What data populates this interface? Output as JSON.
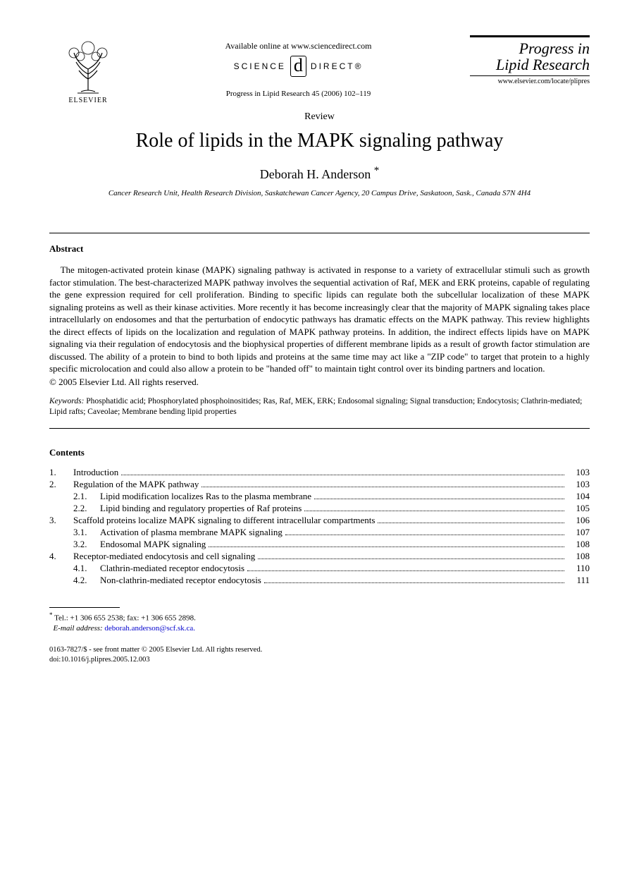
{
  "header": {
    "availableLine": "Available online at www.sciencedirect.com",
    "sdScience": "SCIENCE",
    "sdDirect": "DIRECT®",
    "citation": "Progress in Lipid Research 45 (2006) 102–119",
    "publisher": "ELSEVIER",
    "journalTitleLine1": "Progress in",
    "journalTitleLine2": "Lipid Research",
    "journalUrl": "www.elsevier.com/locate/plipres"
  },
  "article": {
    "type": "Review",
    "title": "Role of lipids in the MAPK signaling pathway",
    "author": "Deborah H. Anderson",
    "authorMark": "*",
    "affiliation": "Cancer Research Unit, Health Research Division, Saskatchewan Cancer Agency, 20 Campus Drive, Saskatoon, Sask., Canada S7N 4H4"
  },
  "abstract": {
    "heading": "Abstract",
    "text": "The mitogen-activated protein kinase (MAPK) signaling pathway is activated in response to a variety of extracellular stimuli such as growth factor stimulation. The best-characterized MAPK pathway involves the sequential activation of Raf, MEK and ERK proteins, capable of regulating the gene expression required for cell proliferation. Binding to specific lipids can regulate both the subcellular localization of these MAPK signaling proteins as well as their kinase activities. More recently it has become increasingly clear that the majority of MAPK signaling takes place intracellularly on endosomes and that the perturbation of endocytic pathways has dramatic effects on the MAPK pathway. This review highlights the direct effects of lipids on the localization and regulation of MAPK pathway proteins. In addition, the indirect effects lipids have on MAPK signaling via their regulation of endocytosis and the biophysical properties of different membrane lipids as a result of growth factor stimulation are discussed. The ability of a protein to bind to both lipids and proteins at the same time may act like a \"ZIP code\" to target that protein to a highly specific microlocation and could also allow a protein to be \"handed off\" to maintain tight control over its binding partners and location.",
    "copyright": "© 2005 Elsevier Ltd. All rights reserved."
  },
  "keywords": {
    "label": "Keywords:",
    "text": " Phosphatidic acid; Phosphorylated phosphoinositides; Ras, Raf, MEK, ERK; Endosomal signaling; Signal transduction; Endocytosis; Clathrin-mediated; Lipid rafts; Caveolae; Membrane bending lipid properties"
  },
  "contents": {
    "heading": "Contents",
    "items": [
      {
        "num": "1.",
        "label": "Introduction",
        "page": "103",
        "sub": false
      },
      {
        "num": "2.",
        "label": "Regulation of the MAPK pathway",
        "page": "103",
        "sub": false
      },
      {
        "num": "2.1.",
        "label": "Lipid modification localizes Ras to the plasma membrane",
        "page": "104",
        "sub": true
      },
      {
        "num": "2.2.",
        "label": "Lipid binding and regulatory properties of Raf proteins",
        "page": "105",
        "sub": true
      },
      {
        "num": "3.",
        "label": "Scaffold proteins localize MAPK signaling to different intracellular compartments",
        "page": "106",
        "sub": false
      },
      {
        "num": "3.1.",
        "label": "Activation of plasma membrane MAPK signaling",
        "page": "107",
        "sub": true
      },
      {
        "num": "3.2.",
        "label": "Endosomal MAPK signaling",
        "page": "108",
        "sub": true
      },
      {
        "num": "4.",
        "label": "Receptor-mediated endocytosis and cell signaling",
        "page": "108",
        "sub": false
      },
      {
        "num": "4.1.",
        "label": "Clathrin-mediated receptor endocytosis",
        "page": "110",
        "sub": true
      },
      {
        "num": "4.2.",
        "label": "Non-clathrin-mediated receptor endocytosis",
        "page": "111",
        "sub": true
      }
    ]
  },
  "footnote": {
    "contact": "Tel.: +1 306 655 2538; fax: +1 306 655 2898.",
    "emailLabel": "E-mail address:",
    "email": "deborah.anderson@scf.sk.ca."
  },
  "footer": {
    "line1": "0163-7827/$ - see front matter © 2005 Elsevier Ltd. All rights reserved.",
    "line2": "doi:10.1016/j.plipres.2005.12.003"
  }
}
